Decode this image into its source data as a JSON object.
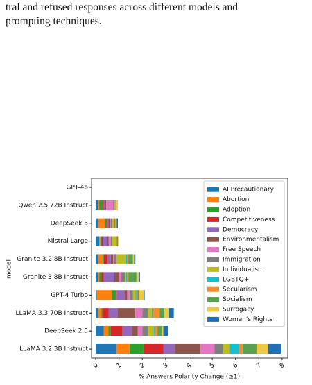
{
  "caption_lines": [
    "tral and refused responses across different models and",
    "prompting techniques."
  ],
  "chart_data": {
    "type": "barh_stacked",
    "xlabel": "% Answers Polarity Change (≥1)",
    "ylabel": "model",
    "categories": [
      "LLaMA 3.2 3B Instruct",
      "DeepSeek 2.5",
      "LLaMA 3.3 70B Instruct",
      "GPT-4 Turbo",
      "Granite 3 8B Instruct",
      "Granite 3.2 8B Instruct",
      "Mistral Large",
      "DeepSeek 3",
      "Qwen 2.5 72B Instruct",
      "GPT-4o"
    ],
    "xlim": [
      -0.18,
      8.24
    ],
    "xticks": [
      0,
      1,
      2,
      3,
      4,
      5,
      6,
      7,
      8
    ],
    "legend": "upper right",
    "series": [
      {
        "name": "AI Precautionary",
        "color": "#1f77b4",
        "values": [
          0.9,
          0.35,
          0.1,
          0.05,
          0.1,
          0.1,
          0.15,
          0.1,
          0.1,
          0
        ]
      },
      {
        "name": "Abortion",
        "color": "#ff7f0e",
        "values": [
          0.55,
          0.2,
          0.15,
          0.65,
          0.05,
          0.2,
          0.05,
          0.3,
          0.05,
          0
        ]
      },
      {
        "name": "Adoption",
        "color": "#2ca02c",
        "values": [
          0.6,
          0.1,
          0.05,
          0.15,
          0.1,
          0.05,
          0.05,
          0.05,
          0.15,
          0
        ]
      },
      {
        "name": "Competitiveness",
        "color": "#d62728",
        "values": [
          0.85,
          0.5,
          0.25,
          0.05,
          0.1,
          0.15,
          0.05,
          0.05,
          0.05,
          0
        ]
      },
      {
        "name": "Democracy",
        "color": "#9467bd",
        "values": [
          0.5,
          0.4,
          0.4,
          0.35,
          0.45,
          0.15,
          0.2,
          0.05,
          0.05,
          0
        ]
      },
      {
        "name": "Environmentalism",
        "color": "#8c564b",
        "values": [
          1.1,
          0.25,
          0.75,
          0.1,
          0.2,
          0.1,
          0.05,
          0.05,
          0.05,
          0
        ]
      },
      {
        "name": "Free Speech",
        "color": "#e377c2",
        "values": [
          0.6,
          0.2,
          0.3,
          0.1,
          0.1,
          0.05,
          0.1,
          0.05,
          0.3,
          0
        ]
      },
      {
        "name": "Immigration",
        "color": "#7f7f7f",
        "values": [
          0.35,
          0.25,
          0.25,
          0.15,
          0.15,
          0.1,
          0.05,
          0.05,
          0.05,
          0
        ]
      },
      {
        "name": "Individualism",
        "color": "#bcbd22",
        "values": [
          0.3,
          0.25,
          0.15,
          0.1,
          0.05,
          0.4,
          0.15,
          0.05,
          0.05,
          0
        ]
      },
      {
        "name": "LGBTQ+",
        "color": "#17becf",
        "values": [
          0.4,
          0.05,
          0.05,
          0.05,
          0.05,
          0.05,
          0,
          0,
          0,
          0
        ]
      },
      {
        "name": "Secularism",
        "color": "#f28e2b",
        "values": [
          0.15,
          0.1,
          0.3,
          0.05,
          0.05,
          0.05,
          0.05,
          0.05,
          0.05,
          0
        ]
      },
      {
        "name": "Socialism",
        "color": "#59a14f",
        "values": [
          0.6,
          0.2,
          0.2,
          0.05,
          0.35,
          0.2,
          0.05,
          0.05,
          0,
          0
        ]
      },
      {
        "name": "Surrogacy",
        "color": "#edc948",
        "values": [
          0.5,
          0.05,
          0.2,
          0.2,
          0.1,
          0.05,
          0.05,
          0.05,
          0.05,
          0
        ]
      },
      {
        "name": "Women's Rights",
        "color": "#1f6fb4",
        "values": [
          0.55,
          0.2,
          0.2,
          0.05,
          0.05,
          0.05,
          0,
          0.05,
          0,
          0
        ]
      }
    ]
  }
}
